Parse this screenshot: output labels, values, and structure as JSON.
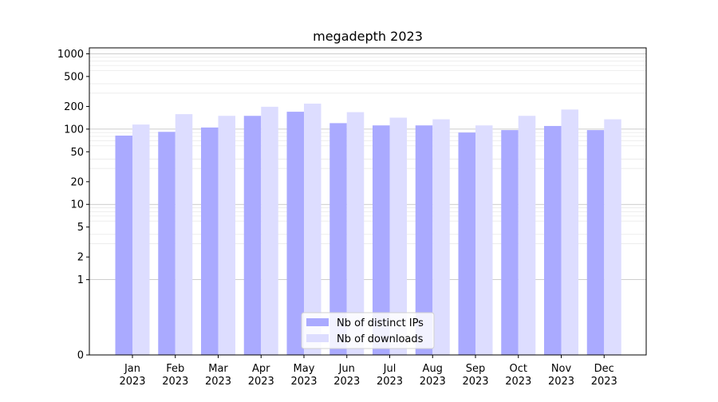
{
  "chart_data": {
    "type": "bar",
    "title": "megadepth 2023",
    "xlabel": "",
    "ylabel": "",
    "yscale": "symlog",
    "ylim": [
      0,
      1200
    ],
    "yticks": [
      0,
      1,
      2,
      5,
      10,
      20,
      50,
      100,
      200,
      500,
      1000
    ],
    "ytick_labels": [
      "0",
      "1",
      "2",
      "5",
      "10",
      "20",
      "50",
      "100",
      "200",
      "500",
      "1000"
    ],
    "grid": true,
    "legend_position": "bottom-center",
    "categories": [
      "Jan\n2023",
      "Feb\n2023",
      "Mar\n2023",
      "Apr\n2023",
      "May\n2023",
      "Jun\n2023",
      "Jul\n2023",
      "Aug\n2023",
      "Sep\n2023",
      "Oct\n2023",
      "Nov\n2023",
      "Dec\n2023"
    ],
    "series": [
      {
        "name": "Nb of distinct IPs",
        "color": "#aaaaff",
        "values": [
          82,
          92,
          105,
          150,
          170,
          120,
          112,
          112,
          90,
          97,
          110,
          97
        ]
      },
      {
        "name": "Nb of downloads",
        "color": "#ddddff",
        "values": [
          115,
          158,
          150,
          198,
          218,
          168,
          142,
          135,
          112,
          150,
          182,
          135
        ]
      }
    ]
  }
}
